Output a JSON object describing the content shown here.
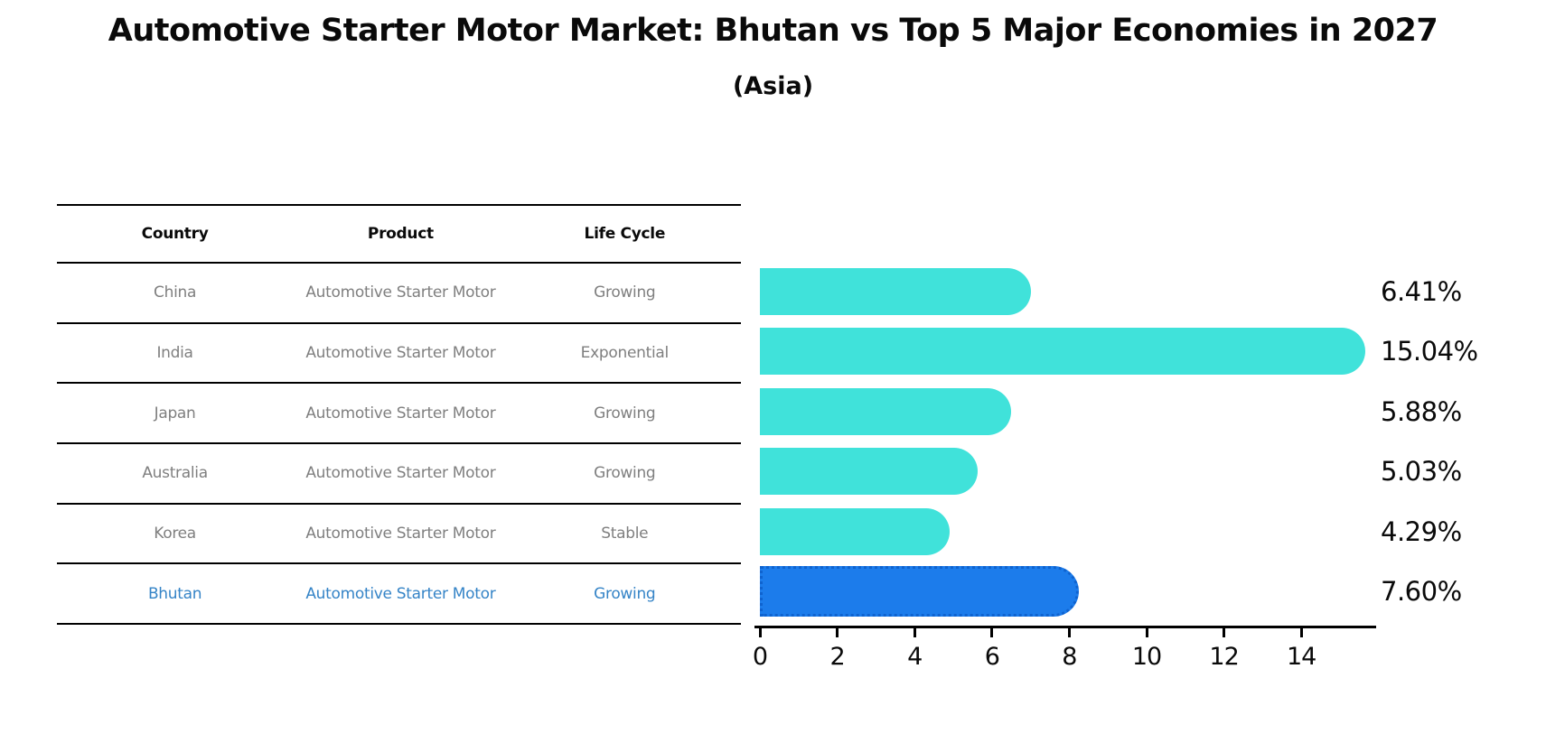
{
  "title": "Automotive Starter Motor Market: Bhutan vs Top 5 Major Economies in 2027",
  "subtitle": "(Asia)",
  "table": {
    "headers": [
      "Country",
      "Product",
      "Life Cycle"
    ],
    "rows": [
      {
        "country": "China",
        "product": "Automotive Starter Motor",
        "life_cycle": "Growing",
        "highlight": false
      },
      {
        "country": "India",
        "product": "Automotive Starter Motor",
        "life_cycle": "Exponential",
        "highlight": false
      },
      {
        "country": "Japan",
        "product": "Automotive Starter Motor",
        "life_cycle": "Growing",
        "highlight": false
      },
      {
        "country": "Australia",
        "product": "Automotive Starter Motor",
        "life_cycle": "Growing",
        "highlight": false
      },
      {
        "country": "Korea",
        "product": "Automotive Starter Motor",
        "life_cycle": "Stable",
        "highlight": false
      },
      {
        "country": "Bhutan",
        "product": "Automotive Starter Motor",
        "life_cycle": "Growing",
        "highlight": true
      }
    ]
  },
  "chart_data": {
    "type": "bar",
    "orientation": "horizontal",
    "title": "Automotive Starter Motor Market: Bhutan vs Top 5 Major Economies in 2027 (Asia)",
    "categories": [
      "China",
      "India",
      "Japan",
      "Australia",
      "Korea",
      "Bhutan"
    ],
    "values": [
      6.41,
      15.04,
      5.88,
      5.03,
      4.29,
      7.6
    ],
    "value_labels": [
      "6.41%",
      "15.04%",
      "5.88%",
      "5.03%",
      "4.29%",
      "7.60%"
    ],
    "xlabel": "",
    "ylabel": "",
    "xlim": [
      0,
      15.86
    ],
    "xticks": [
      0,
      2,
      4,
      6,
      8,
      10,
      12,
      14
    ],
    "grid": false,
    "legend": "none",
    "highlight_index": 5,
    "highlight_style": "dotted-border"
  },
  "colors": {
    "bar": "#40e2da",
    "highlight_bar": "#1c7ceb",
    "highlight_border": "#0f63cf",
    "highlight_text": "#3584c7",
    "row_text": "#7f7f7f",
    "header_text": "#0a0a0a",
    "axis": "#000000"
  }
}
